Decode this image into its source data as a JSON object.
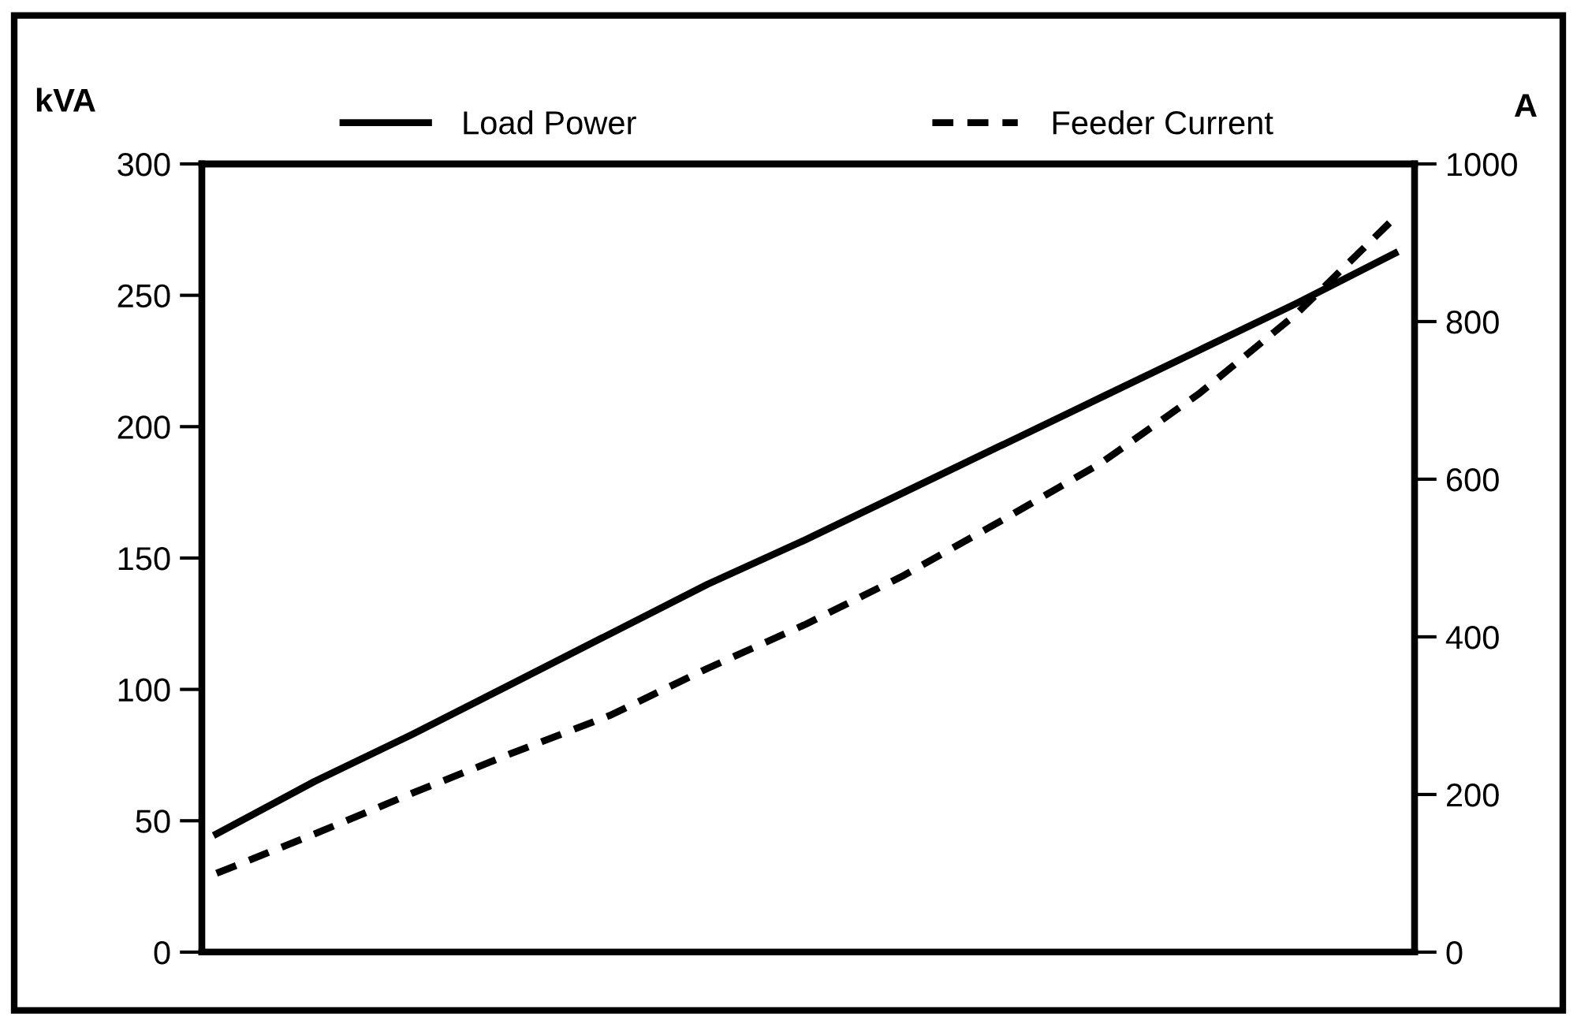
{
  "chart_data": {
    "type": "line",
    "ylabel": "kVA",
    "y2label": "A",
    "categories": [
      null,
      null,
      null,
      null,
      null,
      null,
      null,
      null,
      null,
      null,
      null,
      null,
      null
    ],
    "series": [
      {
        "name": "Load Power",
        "color": "#000000",
        "line_style": "solid",
        "values": [
          45,
          65,
          83,
          102,
          121,
          140,
          157,
          175,
          193,
          211,
          229,
          247,
          266
        ]
      },
      {
        "name": "Feeder Current",
        "color": "#000000",
        "line_style": "dashed",
        "axis": "y2",
        "values": [
          100,
          150,
          202,
          252,
          300,
          360,
          416,
          478,
          548,
          620,
          708,
          810,
          932
        ]
      }
    ],
    "ylim": [
      0,
      300
    ],
    "yticks": [
      0,
      50,
      100,
      150,
      200,
      250,
      300
    ],
    "y2lim": [
      0,
      1000
    ],
    "y2ticks": [
      0,
      200,
      400,
      600,
      800,
      1000
    ],
    "tick_labels": "y",
    "grid": false,
    "legend": "top",
    "marker": "none"
  }
}
